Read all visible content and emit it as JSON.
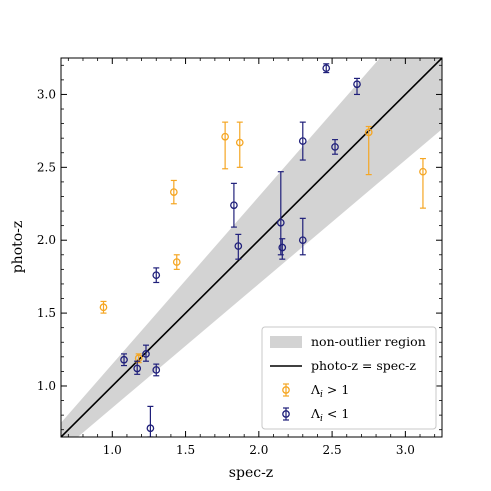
{
  "chart_data": {
    "type": "scatter",
    "xlabel": "spec-z",
    "ylabel": "photo-z",
    "xlim": [
      0.65,
      3.25
    ],
    "ylim": [
      0.65,
      3.25
    ],
    "xticks": [
      "1.0",
      "1.5",
      "2.0",
      "2.5",
      "3.0"
    ],
    "yticks": [
      "1.0",
      "1.5",
      "2.0",
      "2.5",
      "3.0"
    ],
    "grid": false,
    "legend_position": "bottom-right",
    "colors": {
      "orange": "#f5a623",
      "navy": "#1f1f7a",
      "band": "#d3d3d3",
      "line": "#000000"
    },
    "legend": [
      {
        "key": "band",
        "label": "non-outlier region"
      },
      {
        "key": "line",
        "label": "photo-z = spec-z"
      },
      {
        "key": "orange",
        "label": "Λi > 1"
      },
      {
        "key": "navy",
        "label": "Λi < 1"
      }
    ],
    "band": {
      "lower_factor": 0.85,
      "upper_factor": 1.15
    },
    "series": [
      {
        "name": "Λi > 1",
        "color": "#f5a623",
        "points": [
          {
            "x": 0.94,
            "y": 1.54,
            "err_lo": 0.04,
            "err_hi": 0.04
          },
          {
            "x": 1.18,
            "y": 1.19,
            "err_lo": 0.03,
            "err_hi": 0.03
          },
          {
            "x": 1.42,
            "y": 2.33,
            "err_lo": 0.08,
            "err_hi": 0.08
          },
          {
            "x": 1.44,
            "y": 1.85,
            "err_lo": 0.05,
            "err_hi": 0.05
          },
          {
            "x": 1.77,
            "y": 2.71,
            "err_lo": 0.22,
            "err_hi": 0.1
          },
          {
            "x": 1.87,
            "y": 2.67,
            "err_lo": 0.17,
            "err_hi": 0.14
          },
          {
            "x": 2.75,
            "y": 2.74,
            "err_lo": 0.29,
            "err_hi": 0.04
          },
          {
            "x": 3.12,
            "y": 2.47,
            "err_lo": 0.25,
            "err_hi": 0.09
          }
        ]
      },
      {
        "name": "Λi < 1",
        "color": "#1f1f7a",
        "points": [
          {
            "x": 1.08,
            "y": 1.18,
            "err_lo": 0.04,
            "err_hi": 0.04
          },
          {
            "x": 1.17,
            "y": 1.12,
            "err_lo": 0.04,
            "err_hi": 0.05
          },
          {
            "x": 1.23,
            "y": 1.22,
            "err_lo": 0.05,
            "err_hi": 0.06
          },
          {
            "x": 1.26,
            "y": 0.71,
            "err_lo": 0.06,
            "err_hi": 0.15
          },
          {
            "x": 1.3,
            "y": 1.11,
            "err_lo": 0.04,
            "err_hi": 0.04
          },
          {
            "x": 1.3,
            "y": 1.76,
            "err_lo": 0.05,
            "err_hi": 0.05
          },
          {
            "x": 1.83,
            "y": 2.24,
            "err_lo": 0.15,
            "err_hi": 0.15
          },
          {
            "x": 1.86,
            "y": 1.96,
            "err_lo": 0.09,
            "err_hi": 0.08
          },
          {
            "x": 2.15,
            "y": 2.12,
            "err_lo": 0.22,
            "err_hi": 0.35
          },
          {
            "x": 2.16,
            "y": 1.95,
            "err_lo": 0.08,
            "err_hi": 0.06
          },
          {
            "x": 2.3,
            "y": 2.68,
            "err_lo": 0.13,
            "err_hi": 0.13
          },
          {
            "x": 2.3,
            "y": 2.0,
            "err_lo": 0.1,
            "err_hi": 0.15
          },
          {
            "x": 2.46,
            "y": 3.18,
            "err_lo": 0.03,
            "err_hi": 0.03
          },
          {
            "x": 2.52,
            "y": 2.64,
            "err_lo": 0.05,
            "err_hi": 0.05
          },
          {
            "x": 2.67,
            "y": 3.07,
            "err_lo": 0.07,
            "err_hi": 0.04
          }
        ]
      }
    ]
  }
}
